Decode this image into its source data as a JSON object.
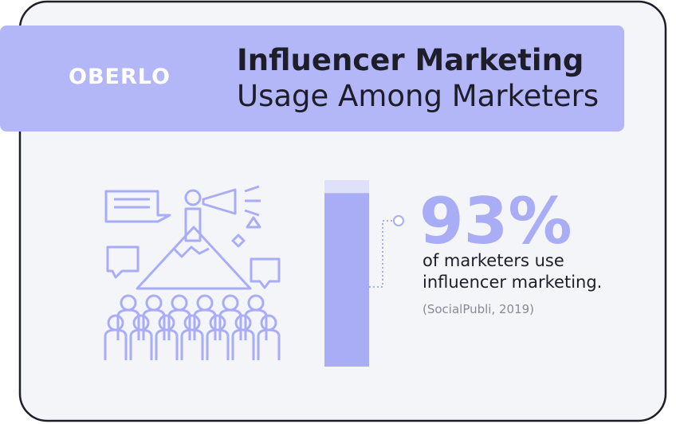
{
  "chart_data": {
    "type": "bar",
    "brand": "OBERLO",
    "title": "Influencer Marketing",
    "subtitle": "Usage Among Marketers",
    "values": [
      93
    ],
    "value_labels": [
      "93%"
    ],
    "ylim": [
      0,
      100
    ],
    "color": "#a9adf5",
    "track_color": "#dfe1fb",
    "caption": "of marketers use influencer marketing.",
    "source": "(SocialPubli, 2019)"
  }
}
